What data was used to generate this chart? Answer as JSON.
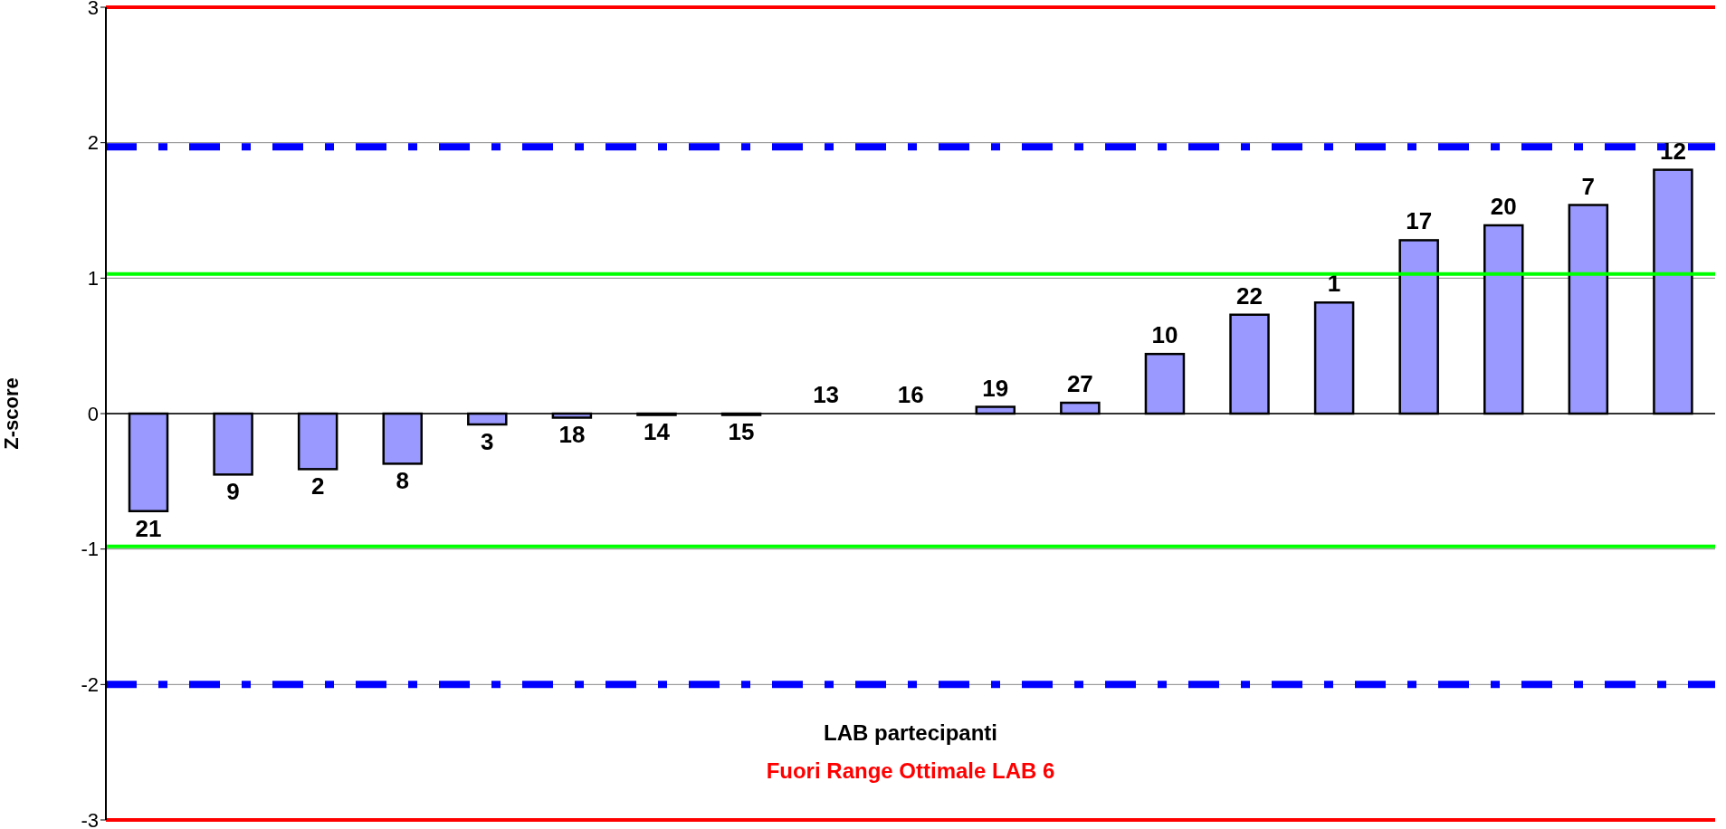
{
  "chart_data": {
    "type": "bar",
    "ylabel": "Z-score",
    "xlabel": "LAB partecipanti",
    "annotations": [
      "Fuori Range Ottimale LAB 6"
    ],
    "categories": [
      "21",
      "9",
      "2",
      "8",
      "3",
      "18",
      "14",
      "15",
      "13",
      "16",
      "19",
      "27",
      "10",
      "22",
      "1",
      "17",
      "20",
      "7",
      "12"
    ],
    "values": [
      -0.72,
      -0.45,
      -0.41,
      -0.37,
      -0.08,
      -0.03,
      -0.01,
      -0.01,
      0,
      0,
      0.05,
      0.08,
      0.44,
      0.73,
      0.82,
      1.28,
      1.39,
      1.54,
      1.8
    ],
    "color": "#9999ff",
    "ylim": [
      -3,
      3
    ],
    "yticks": [
      -3,
      -2,
      -1,
      0,
      1,
      2,
      3
    ],
    "grid": "y",
    "tick_labels": "y",
    "ref_lines": [
      {
        "axis": "y",
        "value": 3,
        "color": "#ff0000",
        "line_style": "solid"
      },
      {
        "axis": "y",
        "value": -3,
        "color": "#ff0000",
        "line_style": "solid"
      },
      {
        "axis": "y",
        "value": 1.97,
        "color": "#0000ff",
        "line_style": "dashdot"
      },
      {
        "axis": "y",
        "value": -2,
        "color": "#0000ff",
        "line_style": "dashdot"
      },
      {
        "axis": "y",
        "value": 1.03,
        "color": "#00ff00",
        "line_style": "solid"
      },
      {
        "axis": "y",
        "value": -0.98,
        "color": "#00ff00",
        "line_style": "solid"
      }
    ]
  }
}
